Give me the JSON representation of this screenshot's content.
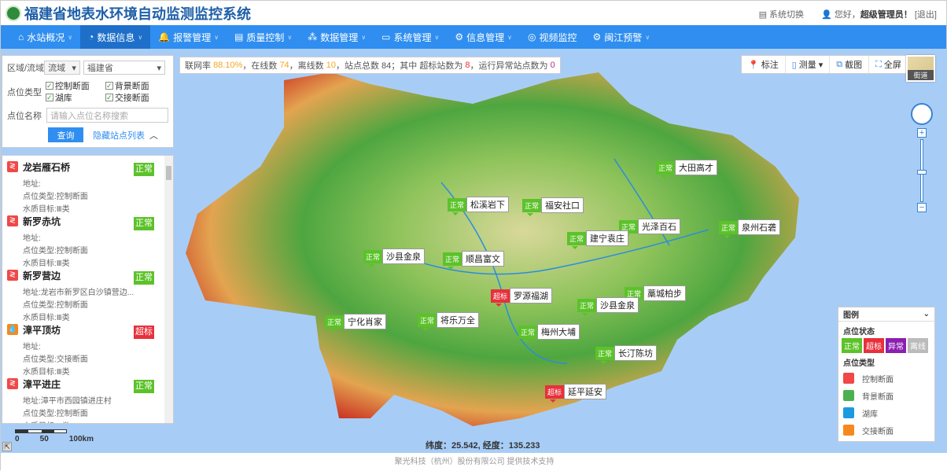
{
  "header": {
    "title": "福建省地表水环境自动监测监控系统",
    "switch": "系统切换",
    "greeting": "您好，",
    "user": "超级管理员！",
    "logout": "[退出]"
  },
  "nav": [
    {
      "label": "水站概况",
      "icon": "home-icon"
    },
    {
      "label": "数据信息",
      "icon": "clock-icon",
      "active": true
    },
    {
      "label": "报警管理",
      "icon": "bell-icon"
    },
    {
      "label": "质量控制",
      "icon": "document-icon"
    },
    {
      "label": "数据管理",
      "icon": "network-icon"
    },
    {
      "label": "系统管理",
      "icon": "monitor-icon"
    },
    {
      "label": "信息管理",
      "icon": "gear-icon"
    },
    {
      "label": "视频监控",
      "icon": "video-icon"
    },
    {
      "label": "闽江预警",
      "icon": "gear-icon"
    }
  ],
  "filter": {
    "region_label": "区域/流域",
    "region_type": "流域",
    "region": "福建省",
    "type_label": "点位类型",
    "types": [
      "控制断面",
      "背景断面",
      "湖库",
      "交接断面"
    ],
    "name_label": "点位名称",
    "name_placeholder": "请输入点位名称搜索",
    "query": "查询",
    "hide_list": "隐藏站点列表"
  },
  "stations": [
    {
      "name": "龙岩雁石桥",
      "type_icon": "control",
      "addr": "地址:",
      "ptype": "点位类型:控制断面",
      "target": "水质目标:Ⅲ类",
      "status": "正常"
    },
    {
      "name": "新罗赤坑",
      "type_icon": "control",
      "addr": "地址:",
      "ptype": "点位类型:控制断面",
      "target": "水质目标:Ⅲ类",
      "status": "正常"
    },
    {
      "name": "新罗营边",
      "type_icon": "control",
      "addr": "地址:龙岩市新罗区白沙镇营边...",
      "ptype": "点位类型:控制断面",
      "target": "水质目标:Ⅲ类",
      "status": "正常"
    },
    {
      "name": "漳平顶坊",
      "type_icon": "junction",
      "addr": "地址:",
      "ptype": "点位类型:交接断面",
      "target": "水质目标:Ⅲ类",
      "status": "超标"
    },
    {
      "name": "漳平进庄",
      "type_icon": "control",
      "addr": "地址:漳平市西园镇进庄村",
      "ptype": "点位类型:控制断面",
      "target": "水质目标:Ⅲ类",
      "status": "正常"
    }
  ],
  "stats": {
    "p1": "联网率 ",
    "rate": "88.10%",
    "p2": "，在线数 ",
    "online": "74",
    "p3": "，离线数 ",
    "offline": "10",
    "p4": "，站点总数 84；其中 超标站数为 ",
    "exceed": "8",
    "p5": "，运行异常站点数为 ",
    "abnormal": "0"
  },
  "tools": [
    "标注",
    "测量",
    "截图",
    "全屏"
  ],
  "basemap": "街道",
  "markers": [
    {
      "status": "正常",
      "name": "大田高才"
    },
    {
      "status": "正常",
      "name": "松溪岩下"
    },
    {
      "status": "正常",
      "name": "福安社口"
    },
    {
      "status": "正常",
      "name": "光泽百石"
    },
    {
      "status": "正常",
      "name": "泉州石砻"
    },
    {
      "status": "正常",
      "name": "建宁袁庄"
    },
    {
      "status": "正常",
      "name": "沙县金泉"
    },
    {
      "status": "正常",
      "name": "顺昌富文"
    },
    {
      "status": "超标",
      "name": "罗源福湖"
    },
    {
      "status": "正常",
      "name": "藁城柏步"
    },
    {
      "status": "正常",
      "name": "沙县金泉"
    },
    {
      "status": "正常",
      "name": "宁化肖家"
    },
    {
      "status": "正常",
      "name": "将乐万全"
    },
    {
      "status": "正常",
      "name": "梅州大埔"
    },
    {
      "status": "正常",
      "name": "长汀陈坊"
    },
    {
      "status": "超标",
      "name": "延平延安"
    }
  ],
  "legend": {
    "title": "图例",
    "status_title": "点位状态",
    "statuses": [
      {
        "label": "正常",
        "color": "#5cc22a"
      },
      {
        "label": "超标",
        "color": "#e8303c"
      },
      {
        "label": "异常",
        "color": "#8a1fb0"
      },
      {
        "label": "离线",
        "color": "#bbbbbb"
      }
    ],
    "type_title": "点位类型",
    "types": [
      {
        "label": "控制断面",
        "color": "#f04848"
      },
      {
        "label": "背景断面",
        "color": "#4cb050"
      },
      {
        "label": "湖库",
        "color": "#1a9be0"
      },
      {
        "label": "交接断面",
        "color": "#f5891f"
      }
    ]
  },
  "scale": {
    "labels": [
      "0",
      "50",
      "100km"
    ]
  },
  "coord": "纬度：25.542, 经度：135.233",
  "footer": "聚光科技（杭州）股份有限公司 提供技术支持",
  "colors": {
    "nav": "#2f8ef0",
    "normal": "#5cc22a",
    "exceed": "#e8303c"
  }
}
